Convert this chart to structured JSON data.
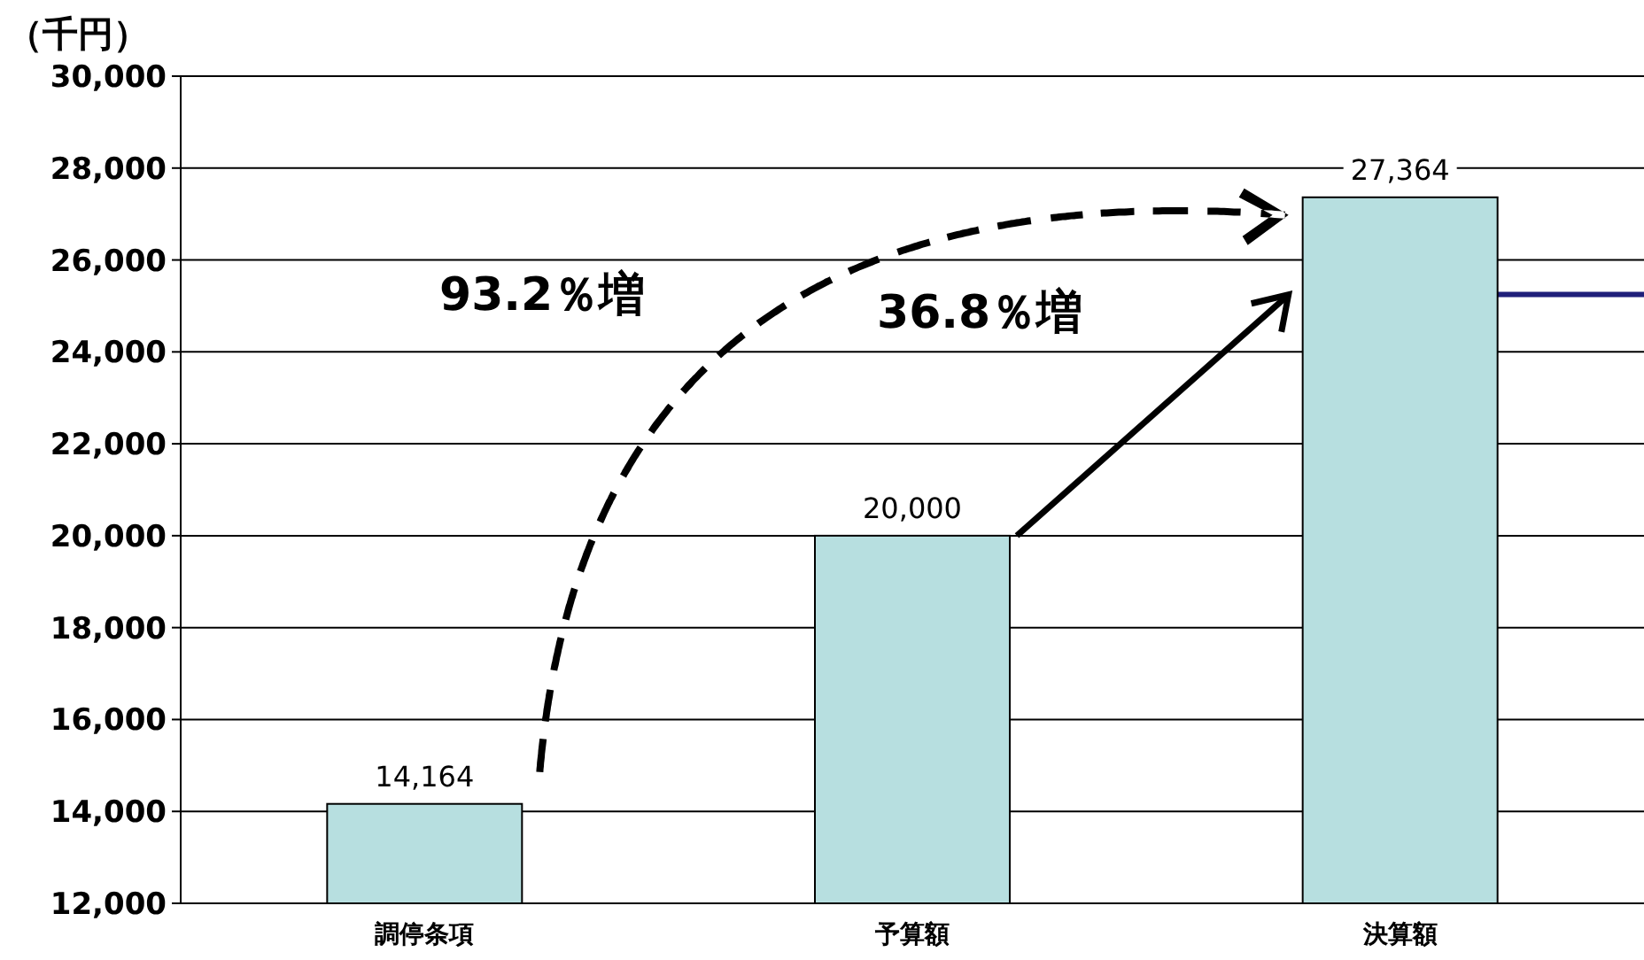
{
  "chart_data": {
    "type": "bar",
    "ylabel": "（千円）",
    "categories": [
      "調停条項",
      "予算額",
      "決算額"
    ],
    "values": [
      14164,
      20000,
      27364
    ],
    "value_labels": [
      "14,164",
      "20,000",
      "27,364"
    ],
    "color": "#b7dfe0",
    "ylim": [
      12000,
      30000
    ],
    "yticks": [
      {
        "value": 12000,
        "label": "12,000"
      },
      {
        "value": 14000,
        "label": "14,000"
      },
      {
        "value": 16000,
        "label": "16,000"
      },
      {
        "value": 18000,
        "label": "18,000"
      },
      {
        "value": 20000,
        "label": "20,000"
      },
      {
        "value": 22000,
        "label": "22,000"
      },
      {
        "value": 24000,
        "label": "24,000"
      },
      {
        "value": 26000,
        "label": "26,000"
      },
      {
        "value": 28000,
        "label": "28,000"
      },
      {
        "value": 30000,
        "label": "30,000"
      }
    ],
    "grid": "y",
    "annotations": [
      "93.2％増",
      "36.8％増"
    ],
    "ref_lines": [
      {
        "axis": "y",
        "value": 25250,
        "color": "#1f1f7a"
      }
    ]
  }
}
